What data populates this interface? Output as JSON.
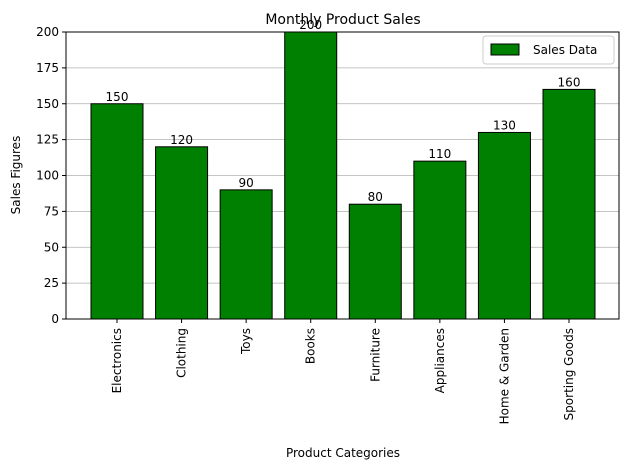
{
  "chart_data": {
    "type": "bar",
    "title": "Monthly Product Sales",
    "xlabel": "Product Categories",
    "ylabel": "Sales Figures",
    "categories": [
      "Electronics",
      "Clothing",
      "Toys",
      "Books",
      "Furniture",
      "Appliances",
      "Home & Garden",
      "Sporting Goods"
    ],
    "series": [
      {
        "name": "Sales Data",
        "values": [
          150,
          120,
          90,
          200,
          80,
          110,
          130,
          160
        ]
      }
    ],
    "ylim": [
      0,
      200
    ],
    "yticks": [
      0,
      25,
      50,
      75,
      100,
      125,
      150,
      175,
      200
    ],
    "grid": "y",
    "legend_position": "top-right",
    "bar_color": "#008000",
    "bar_edge_color": "#000000",
    "grid_color": "#b0b0b0"
  }
}
